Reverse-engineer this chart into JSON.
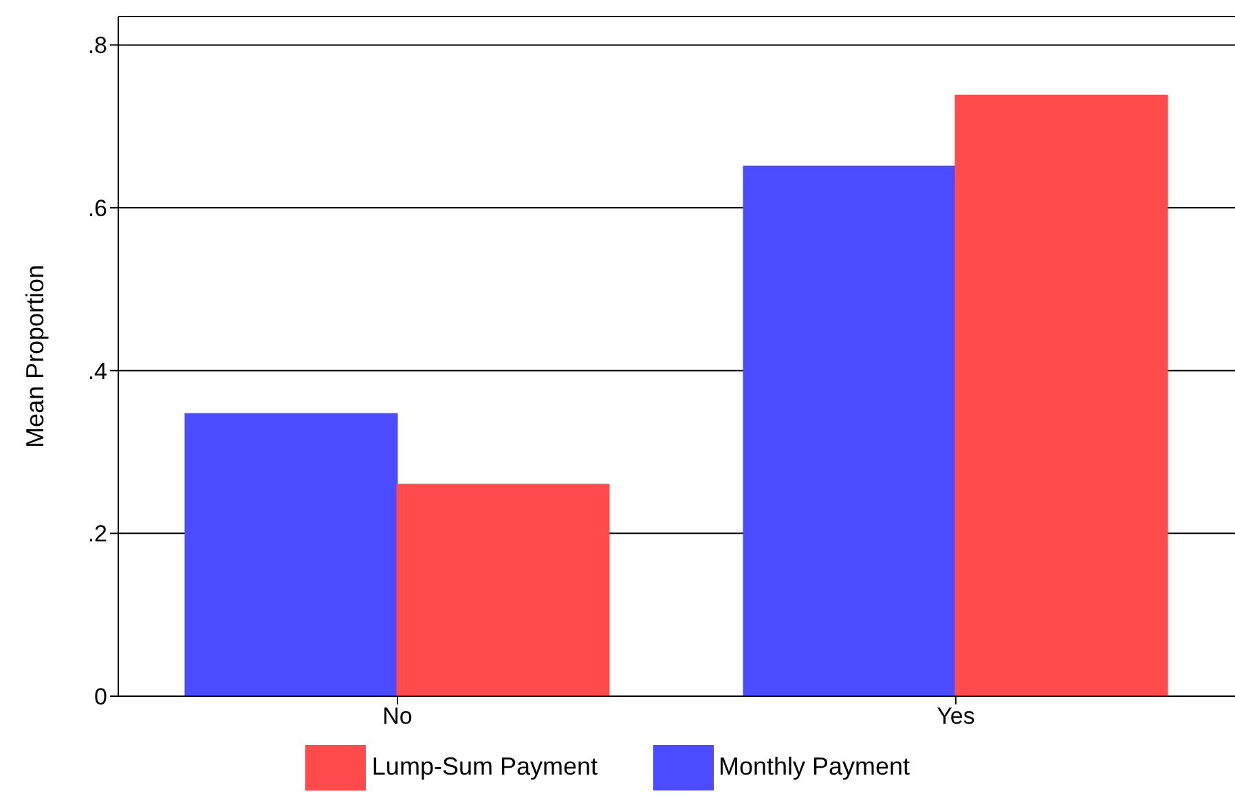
{
  "chart_data": {
    "type": "bar",
    "ylabel": "Mean Proportion",
    "categories": [
      "No",
      "Yes"
    ],
    "series": [
      {
        "name": "Monthly Payment",
        "color": "#4b4bff",
        "values": [
          0.347,
          0.651
        ]
      },
      {
        "name": "Lump-Sum Payment",
        "color": "#ff4b4b",
        "values": [
          0.26,
          0.738
        ]
      }
    ],
    "ylim": [
      0,
      0.835
    ],
    "yticks": [
      0,
      {
        "value": 0.2,
        "label": ".2"
      },
      {
        "value": 0.4,
        "label": ".4"
      },
      {
        "value": 0.6,
        "label": ".6"
      },
      {
        "value": 0.8,
        "label": ".8"
      }
    ],
    "grid": "y",
    "legend": "bottom"
  }
}
